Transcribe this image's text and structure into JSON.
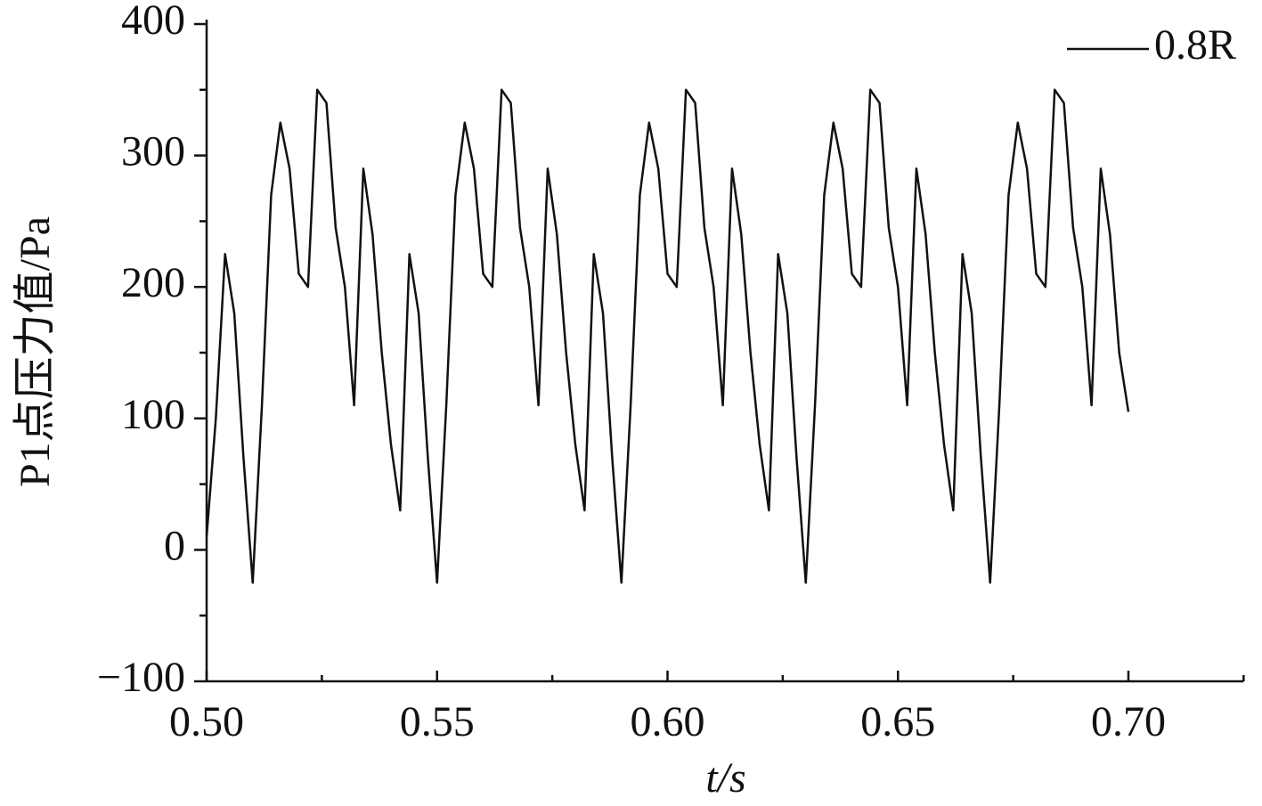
{
  "chart_data": {
    "type": "line",
    "xlabel": "t/s",
    "ylabel": "P1点压力值/Pa",
    "x": [
      0.5,
      0.502,
      0.504,
      0.506,
      0.508,
      0.51,
      0.512,
      0.514,
      0.516,
      0.518,
      0.52,
      0.522,
      0.524,
      0.526,
      0.528,
      0.53,
      0.532,
      0.534,
      0.536,
      0.538,
      0.54,
      0.542,
      0.544,
      0.546,
      0.548,
      0.55,
      0.552,
      0.554,
      0.556,
      0.558,
      0.56,
      0.562,
      0.564,
      0.566,
      0.568,
      0.57,
      0.572,
      0.574,
      0.576,
      0.578,
      0.58,
      0.582,
      0.584,
      0.586,
      0.588,
      0.59,
      0.592,
      0.594,
      0.596,
      0.598,
      0.6,
      0.602,
      0.604,
      0.606,
      0.608,
      0.61,
      0.612,
      0.614,
      0.616,
      0.618,
      0.62,
      0.622,
      0.624,
      0.626,
      0.628,
      0.63,
      0.632,
      0.634,
      0.636,
      0.638,
      0.64,
      0.642,
      0.644,
      0.646,
      0.648,
      0.65,
      0.652,
      0.654,
      0.656,
      0.658,
      0.66,
      0.662,
      0.664,
      0.666,
      0.668,
      0.67,
      0.672,
      0.674,
      0.676,
      0.678,
      0.68,
      0.682,
      0.684,
      0.686,
      0.688,
      0.69,
      0.692,
      0.694,
      0.696,
      0.698,
      0.7
    ],
    "series": [
      {
        "name": "0.8R",
        "color": "#111111",
        "values": [
          10,
          100,
          225,
          180,
          70,
          -25,
          110,
          270,
          325,
          290,
          210,
          200,
          350,
          340,
          245,
          200,
          110,
          290,
          240,
          150,
          80,
          30,
          225,
          180,
          70,
          -25,
          110,
          270,
          325,
          290,
          210,
          200,
          350,
          340,
          245,
          200,
          110,
          290,
          240,
          150,
          80,
          30,
          225,
          180,
          70,
          -25,
          110,
          270,
          325,
          290,
          210,
          200,
          350,
          340,
          245,
          200,
          110,
          290,
          240,
          150,
          80,
          30,
          225,
          180,
          70,
          -25,
          110,
          270,
          325,
          290,
          210,
          200,
          350,
          340,
          245,
          200,
          110,
          290,
          240,
          150,
          80,
          30,
          225,
          180,
          70,
          -25,
          110,
          270,
          325,
          290,
          210,
          200,
          350,
          340,
          245,
          200,
          110,
          290,
          240,
          150,
          105
        ]
      }
    ],
    "xlim": [
      0.5,
      0.725
    ],
    "xticks": [
      {
        "value": 0.5,
        "label": "0.50"
      },
      {
        "value": 0.55,
        "label": "0.55"
      },
      {
        "value": 0.6,
        "label": "0.60"
      },
      {
        "value": 0.65,
        "label": "0.65"
      },
      {
        "value": 0.7,
        "label": "0.70"
      }
    ],
    "xminor_ticks": [
      0.525,
      0.575,
      0.625,
      0.675,
      0.725
    ],
    "ylim": [
      -100,
      400
    ],
    "yticks": [
      {
        "value": -100,
        "label": "−100"
      },
      0,
      100,
      200,
      300,
      400
    ],
    "yminor_ticks": [
      -50,
      50,
      150,
      250,
      350
    ],
    "legend": "upper right"
  }
}
